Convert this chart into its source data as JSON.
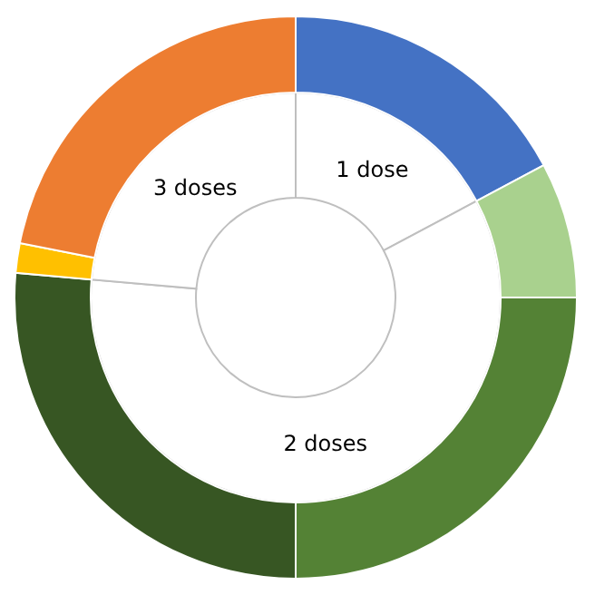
{
  "chart_data": {
    "type": "donut",
    "annotations": [
      "1 dose",
      "2 doses",
      "3 doses"
    ],
    "series": [
      {
        "values": [
          17.2,
          59.2,
          23.6
        ],
        "colors": [
          "#ffffff",
          "#ffffff",
          "#ffffff"
        ]
      },
      {
        "values": [
          17.2,
          7.8,
          25,
          26.4,
          1.7,
          21.9
        ],
        "colors": [
          "#4472c4",
          "#a9d18e",
          "#548235",
          "#375623",
          "#ffc000",
          "#ed7d31"
        ]
      }
    ]
  }
}
